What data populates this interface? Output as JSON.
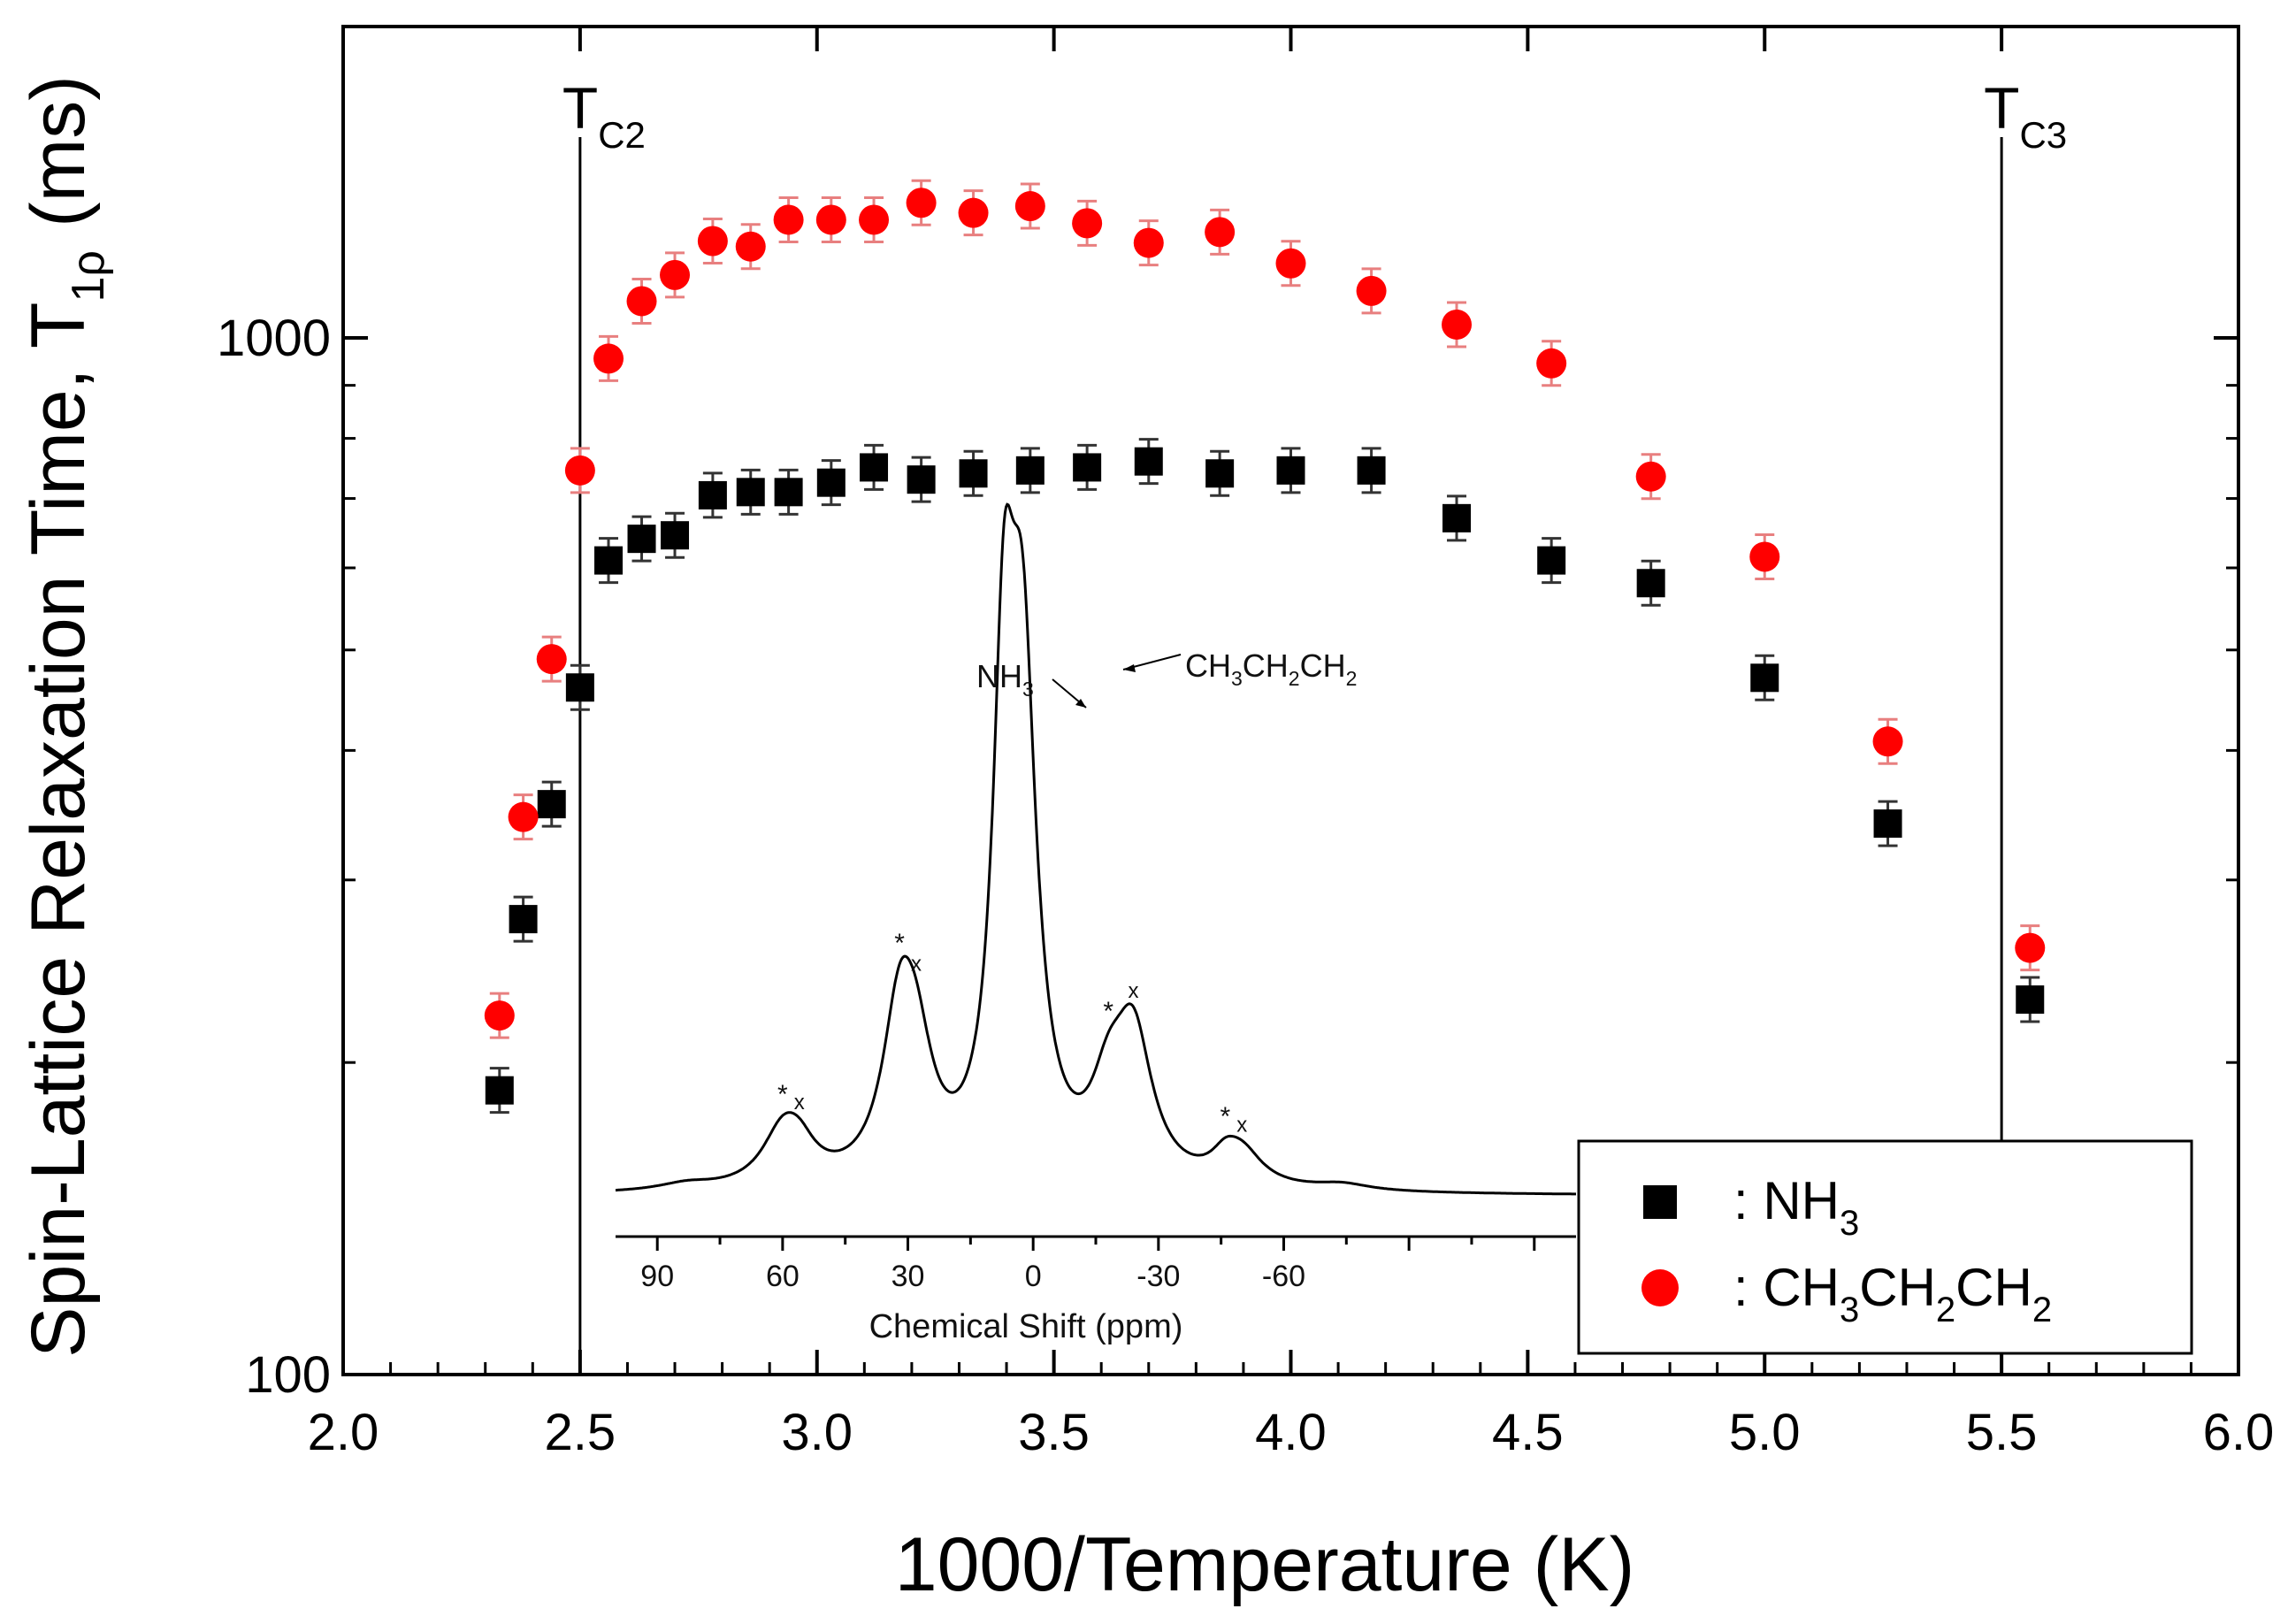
{
  "chart_data": {
    "type": "scatter",
    "xlabel": "1000/Temperature (K)",
    "ylabel": {
      "main": "Spin-Lattice Relaxation Time, T",
      "sub": "1ρ",
      "unit": "(ms)"
    },
    "xlim": [
      2.0,
      6.0
    ],
    "ylim": [
      100,
      2000
    ],
    "yscale": "log",
    "x_ticks": [
      "2.0",
      "2.5",
      "3.0",
      "3.5",
      "4.0",
      "4.5",
      "5.0",
      "5.5",
      "6.0"
    ],
    "y_tick_labels": [
      "100",
      "1000"
    ],
    "transitions": [
      {
        "name": "T",
        "sub": "C2",
        "x": 2.5
      },
      {
        "name": "T",
        "sub": "C3",
        "x": 5.5
      }
    ],
    "legend_position": "bottom-right",
    "series": [
      {
        "name": "NH3",
        "legend_label": {
          "prefix": ": NH",
          "sub": "3"
        },
        "marker": "square",
        "color": "#000000",
        "x": [
          2.33,
          2.38,
          2.44,
          2.5,
          2.56,
          2.63,
          2.7,
          2.78,
          2.86,
          2.94,
          3.03,
          3.12,
          3.22,
          3.33,
          3.45,
          3.57,
          3.7,
          3.85,
          4.0,
          4.17,
          4.35,
          4.55,
          4.76,
          5.0,
          5.26,
          5.56
        ],
        "y": [
          188,
          275,
          355,
          460,
          610,
          640,
          645,
          705,
          710,
          710,
          725,
          750,
          730,
          740,
          745,
          750,
          760,
          740,
          745,
          745,
          670,
          610,
          580,
          470,
          340,
          230
        ]
      },
      {
        "name": "CH3CH2CH2",
        "legend_label": {
          "prefix": ": CH",
          "sub1": "3",
          "mid1": "CH",
          "sub2": "2",
          "mid2": "CH",
          "sub3": "2"
        },
        "marker": "circle",
        "color": "#ff0000",
        "x": [
          2.33,
          2.38,
          2.44,
          2.5,
          2.56,
          2.63,
          2.7,
          2.78,
          2.86,
          2.94,
          3.03,
          3.12,
          3.22,
          3.33,
          3.45,
          3.57,
          3.7,
          3.85,
          4.0,
          4.17,
          4.35,
          4.55,
          4.76,
          5.0,
          5.26,
          5.56
        ],
        "y": [
          222,
          345,
          490,
          745,
          955,
          1085,
          1150,
          1240,
          1225,
          1300,
          1300,
          1300,
          1350,
          1320,
          1340,
          1290,
          1235,
          1265,
          1180,
          1110,
          1030,
          945,
          735,
          615,
          408,
          258
        ]
      }
    ],
    "inset": {
      "type": "line",
      "xlabel": "Chemical Shift (ppm)",
      "xlim": [
        100,
        -130
      ],
      "x_ticks": [
        "90",
        "60",
        "30",
        "0",
        "-30",
        "-60"
      ],
      "peak_labels": [
        {
          "prefix": "NH",
          "sub": "3"
        },
        {
          "prefix": "CH",
          "sub1": "3",
          "mid1": "CH",
          "sub2": "2",
          "mid2": "CH",
          "sub3": "2"
        }
      ],
      "sideband_markers": {
        "star": "*",
        "cross": "x"
      },
      "peaks": [
        {
          "center": 7,
          "height": 0.82,
          "width": 3.2
        },
        {
          "center": 2.5,
          "height": 0.88,
          "width": 4.0
        },
        {
          "center": 32,
          "height": 0.28,
          "width": 5
        },
        {
          "center": 28,
          "height": 0.18,
          "width": 5
        },
        {
          "center": -18,
          "height": 0.13,
          "width": 5
        },
        {
          "center": -24,
          "height": 0.26,
          "width": 5.5
        },
        {
          "center": 60,
          "height": 0.095,
          "width": 6
        },
        {
          "center": 56,
          "height": 0.05,
          "width": 5
        },
        {
          "center": -46,
          "height": 0.035,
          "width": 4
        },
        {
          "center": -50,
          "height": 0.06,
          "width": 6
        },
        {
          "center": 83,
          "height": 0.012,
          "width": 8
        },
        {
          "center": -74,
          "height": 0.012,
          "width": 8
        }
      ]
    }
  }
}
